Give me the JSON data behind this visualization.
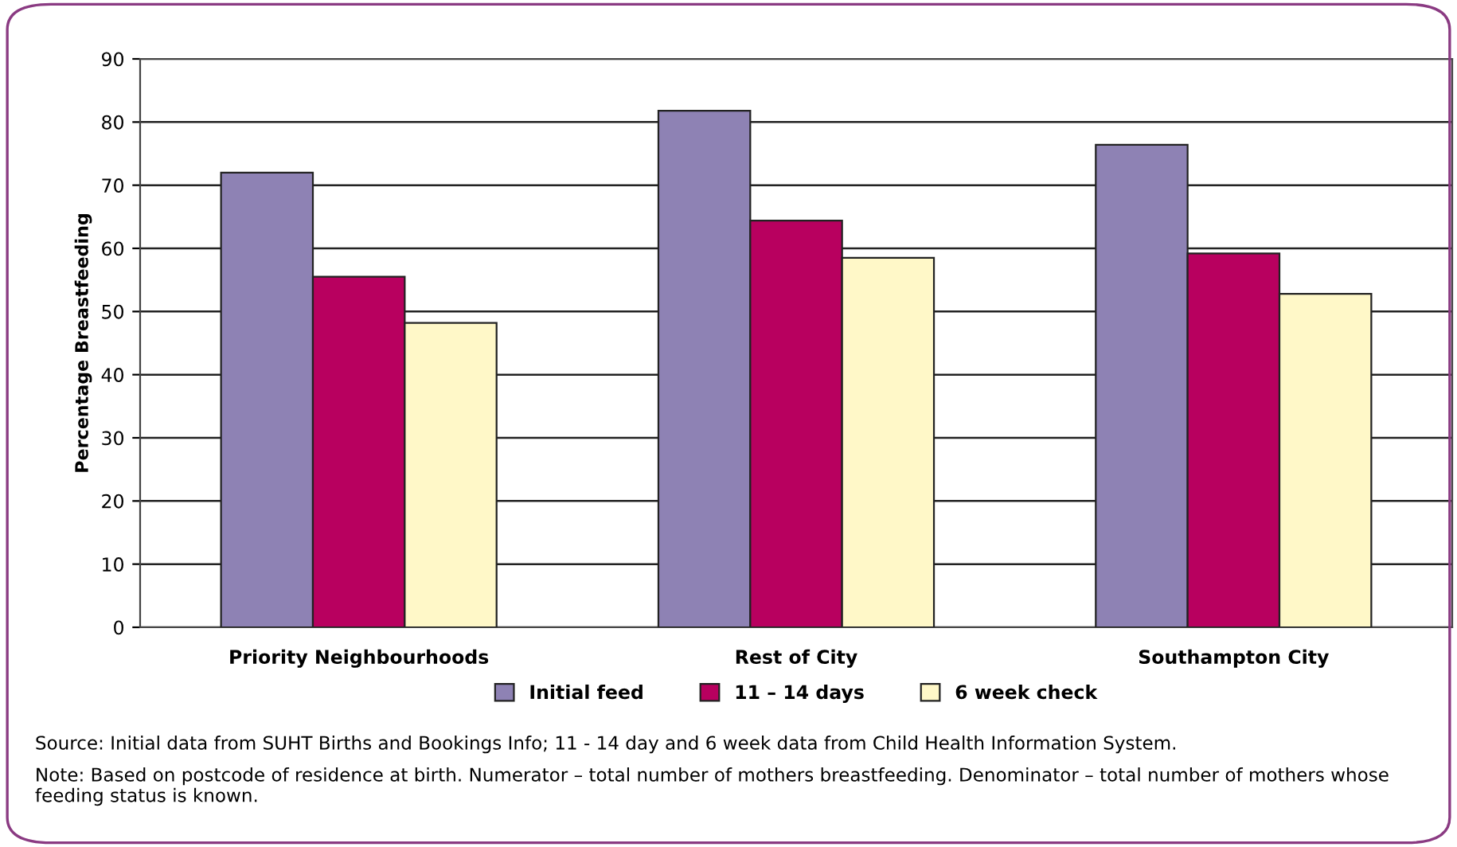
{
  "chart_data": {
    "type": "bar",
    "ylabel": "Percentage Breastfeeding",
    "categories": [
      "Priority Neighbourhoods",
      "Rest of City",
      "Southampton City"
    ],
    "series": [
      {
        "name": "Initial feed",
        "color": "#8e82b4",
        "values": [
          72,
          81.8,
          76.4
        ]
      },
      {
        "name": "11 – 14 days",
        "color": "#b8005f",
        "values": [
          55.5,
          64.4,
          59.2
        ]
      },
      {
        "name": "6 week check",
        "color": "#fff8c8",
        "values": [
          48.2,
          58.5,
          52.8
        ]
      }
    ],
    "ylim": [
      0,
      90
    ],
    "yticks": [
      0,
      10,
      20,
      30,
      40,
      50,
      60,
      70,
      80,
      90
    ],
    "grid": "y",
    "legend": "bottom",
    "annotations": [
      "Source: Initial data from SUHT Births and Bookings Info; 11 - 14 day and 6 week data from Child Health Information System.",
      "Note: Based on postcode of residence at birth. Numerator – total number of mothers breastfeeding. Denominator – total number of mothers whose feeding status is known."
    ]
  }
}
